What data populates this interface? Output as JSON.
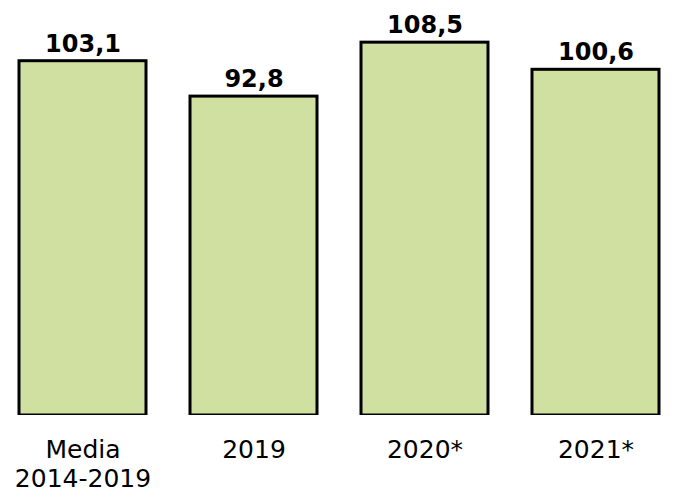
{
  "chart_data": {
    "type": "bar",
    "categories": [
      "Media 2014-2019",
      "2019",
      "2020*",
      "2021*"
    ],
    "values": [
      103.1,
      92.8,
      108.5,
      100.6
    ],
    "value_labels": [
      "103,1",
      "92,8",
      "108,5",
      "100,6"
    ],
    "color": "#cfe0a0",
    "ylim": [
      0,
      110
    ],
    "data_labels": true,
    "tick_labels": "x",
    "grid": false
  }
}
